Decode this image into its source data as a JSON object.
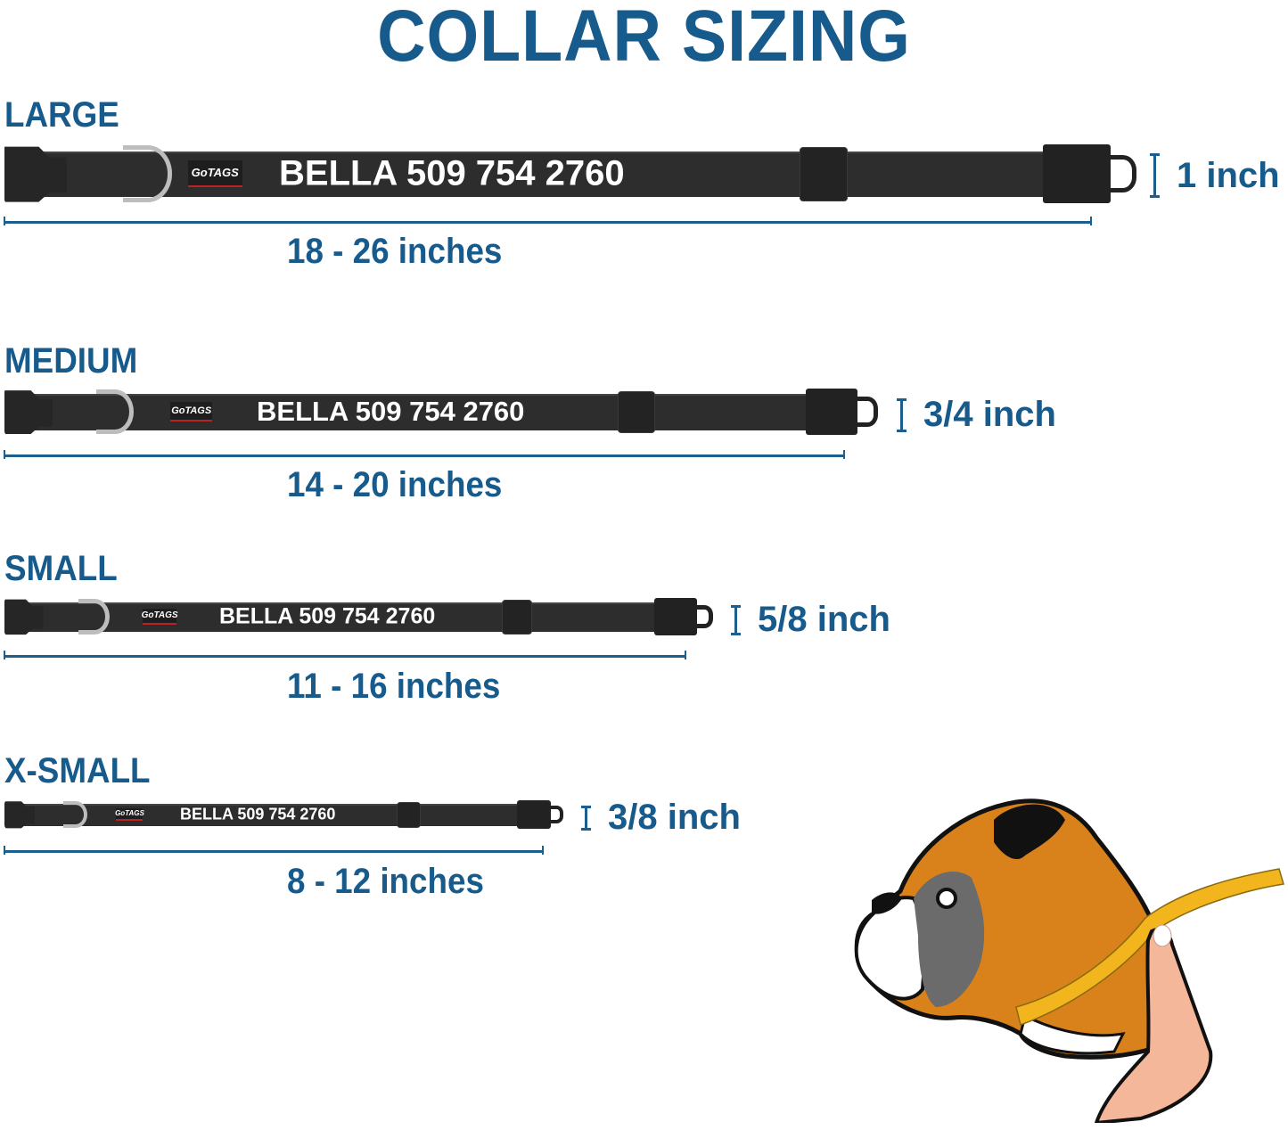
{
  "title": "COLLAR SIZING",
  "collar_text": "BELLA 509 754 2760",
  "logo": "GoTAGS",
  "colors": {
    "title": "#175a8c",
    "collar": "#2d2d2d",
    "dring": "#bdbdbd",
    "tape": "#f2b51d",
    "dog_fur": "#d9821c"
  },
  "sizes": [
    {
      "label": "LARGE",
      "range": "18 - 26 inches",
      "width": "1 inch"
    },
    {
      "label": "MEDIUM",
      "range": "14 - 20 inches",
      "width": "3/4 inch"
    },
    {
      "label": "SMALL",
      "range": "11 - 16 inches",
      "width": "5/8 inch"
    },
    {
      "label": "X-SMALL",
      "range": "8 - 12 inches",
      "width": "3/8 inch"
    }
  ]
}
